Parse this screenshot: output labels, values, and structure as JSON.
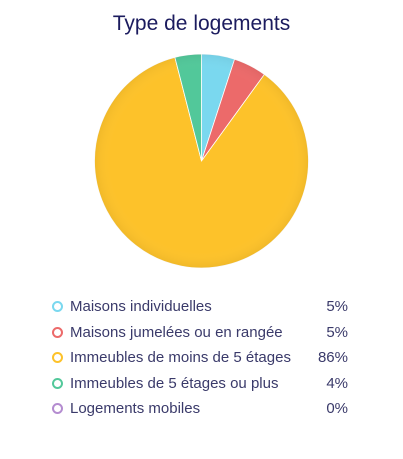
{
  "chart_data": {
    "type": "pie",
    "title": "Type de logements",
    "categories": [
      "Maisons individuelles",
      "Maisons jumelées ou en rangée",
      "Immeubles de moins de 5 étages",
      "Immeubles de 5 étages ou plus",
      "Logements mobiles"
    ],
    "values": [
      5,
      5,
      86,
      4,
      0
    ],
    "value_labels": [
      "5%",
      "5%",
      "86%",
      "4%",
      "0%"
    ],
    "colors": [
      "#7ad8ef",
      "#ec6a6a",
      "#fdc22a",
      "#52c89a",
      "#b48cd0"
    ],
    "legend_placement": "bottom",
    "start_angle_deg": 0,
    "direction": "clockwise"
  }
}
